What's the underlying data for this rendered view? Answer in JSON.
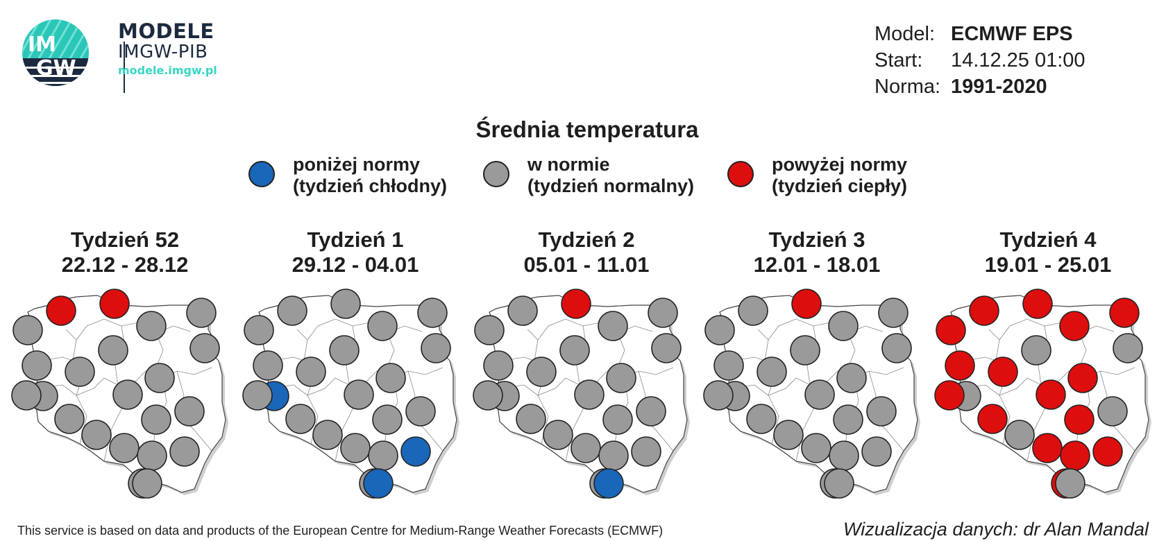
{
  "logo": {
    "badge_top": "IM",
    "badge_bottom": "GW",
    "title": "MODELE",
    "subtitle": "IMGW-PIB",
    "url": "modele.imgw.pl"
  },
  "meta": {
    "model_label": "Model:",
    "model_value": "ECMWF EPS",
    "start_label": "Start:",
    "start_value": "14.12.25 01:00",
    "norm_label": "Norma:",
    "norm_value": "1991-2020"
  },
  "title": "Średnia temperatura",
  "legend": [
    {
      "line1": "poniżej normy",
      "line2": "(tydzień chłodny)",
      "color": "#1a66b8"
    },
    {
      "line1": "w normie",
      "line2": "(tydzień normalny)",
      "color": "#9a9a9a"
    },
    {
      "line1": "powyżej normy",
      "line2": "(tydzień ciepły)",
      "color": "#dd0e0e"
    }
  ],
  "colors": {
    "cold": "#1a66b8",
    "normal": "#9a9a9a",
    "warm": "#dd0e0e"
  },
  "weeks": [
    {
      "label": "Tydzień 52",
      "dates": "22.12 - 28.12",
      "stations": [
        "warm",
        "warm",
        "normal",
        "normal",
        "normal",
        "normal",
        "normal",
        "normal",
        "normal",
        "normal",
        "normal",
        "normal",
        "normal",
        "normal",
        "normal",
        "normal",
        "normal",
        "normal",
        "normal",
        "normal",
        "normal",
        "normal"
      ]
    },
    {
      "label": "Tydzień 1",
      "dates": "29.12 - 04.01",
      "stations": [
        "normal",
        "normal",
        "normal",
        "normal",
        "normal",
        "normal",
        "normal",
        "normal",
        "normal",
        "normal",
        "cold",
        "normal",
        "normal",
        "normal",
        "normal",
        "normal",
        "cold",
        "normal",
        "normal",
        "normal",
        "normal",
        "cold"
      ]
    },
    {
      "label": "Tydzień 2",
      "dates": "05.01 - 11.01",
      "stations": [
        "normal",
        "warm",
        "normal",
        "normal",
        "normal",
        "normal",
        "normal",
        "normal",
        "normal",
        "normal",
        "normal",
        "normal",
        "normal",
        "normal",
        "normal",
        "normal",
        "normal",
        "normal",
        "normal",
        "normal",
        "normal",
        "cold"
      ]
    },
    {
      "label": "Tydzień 3",
      "dates": "12.01 - 18.01",
      "stations": [
        "normal",
        "warm",
        "normal",
        "normal",
        "normal",
        "normal",
        "normal",
        "normal",
        "normal",
        "normal",
        "normal",
        "normal",
        "normal",
        "normal",
        "normal",
        "normal",
        "normal",
        "normal",
        "normal",
        "normal",
        "normal",
        "normal"
      ]
    },
    {
      "label": "Tydzień 4",
      "dates": "19.01 - 25.01",
      "stations": [
        "warm",
        "warm",
        "warm",
        "warm",
        "warm",
        "normal",
        "warm",
        "normal",
        "warm",
        "warm",
        "normal",
        "warm",
        "normal",
        "warm",
        "warm",
        "normal",
        "warm",
        "warm",
        "warm",
        "warm",
        "warm",
        "normal"
      ]
    }
  ],
  "footer_left": "This service is based on data and products of the European Centre for Medium-Range Weather Forecasts (ECMWF)",
  "footer_right": "Wizualizacja danych: dr Alan Mandal"
}
